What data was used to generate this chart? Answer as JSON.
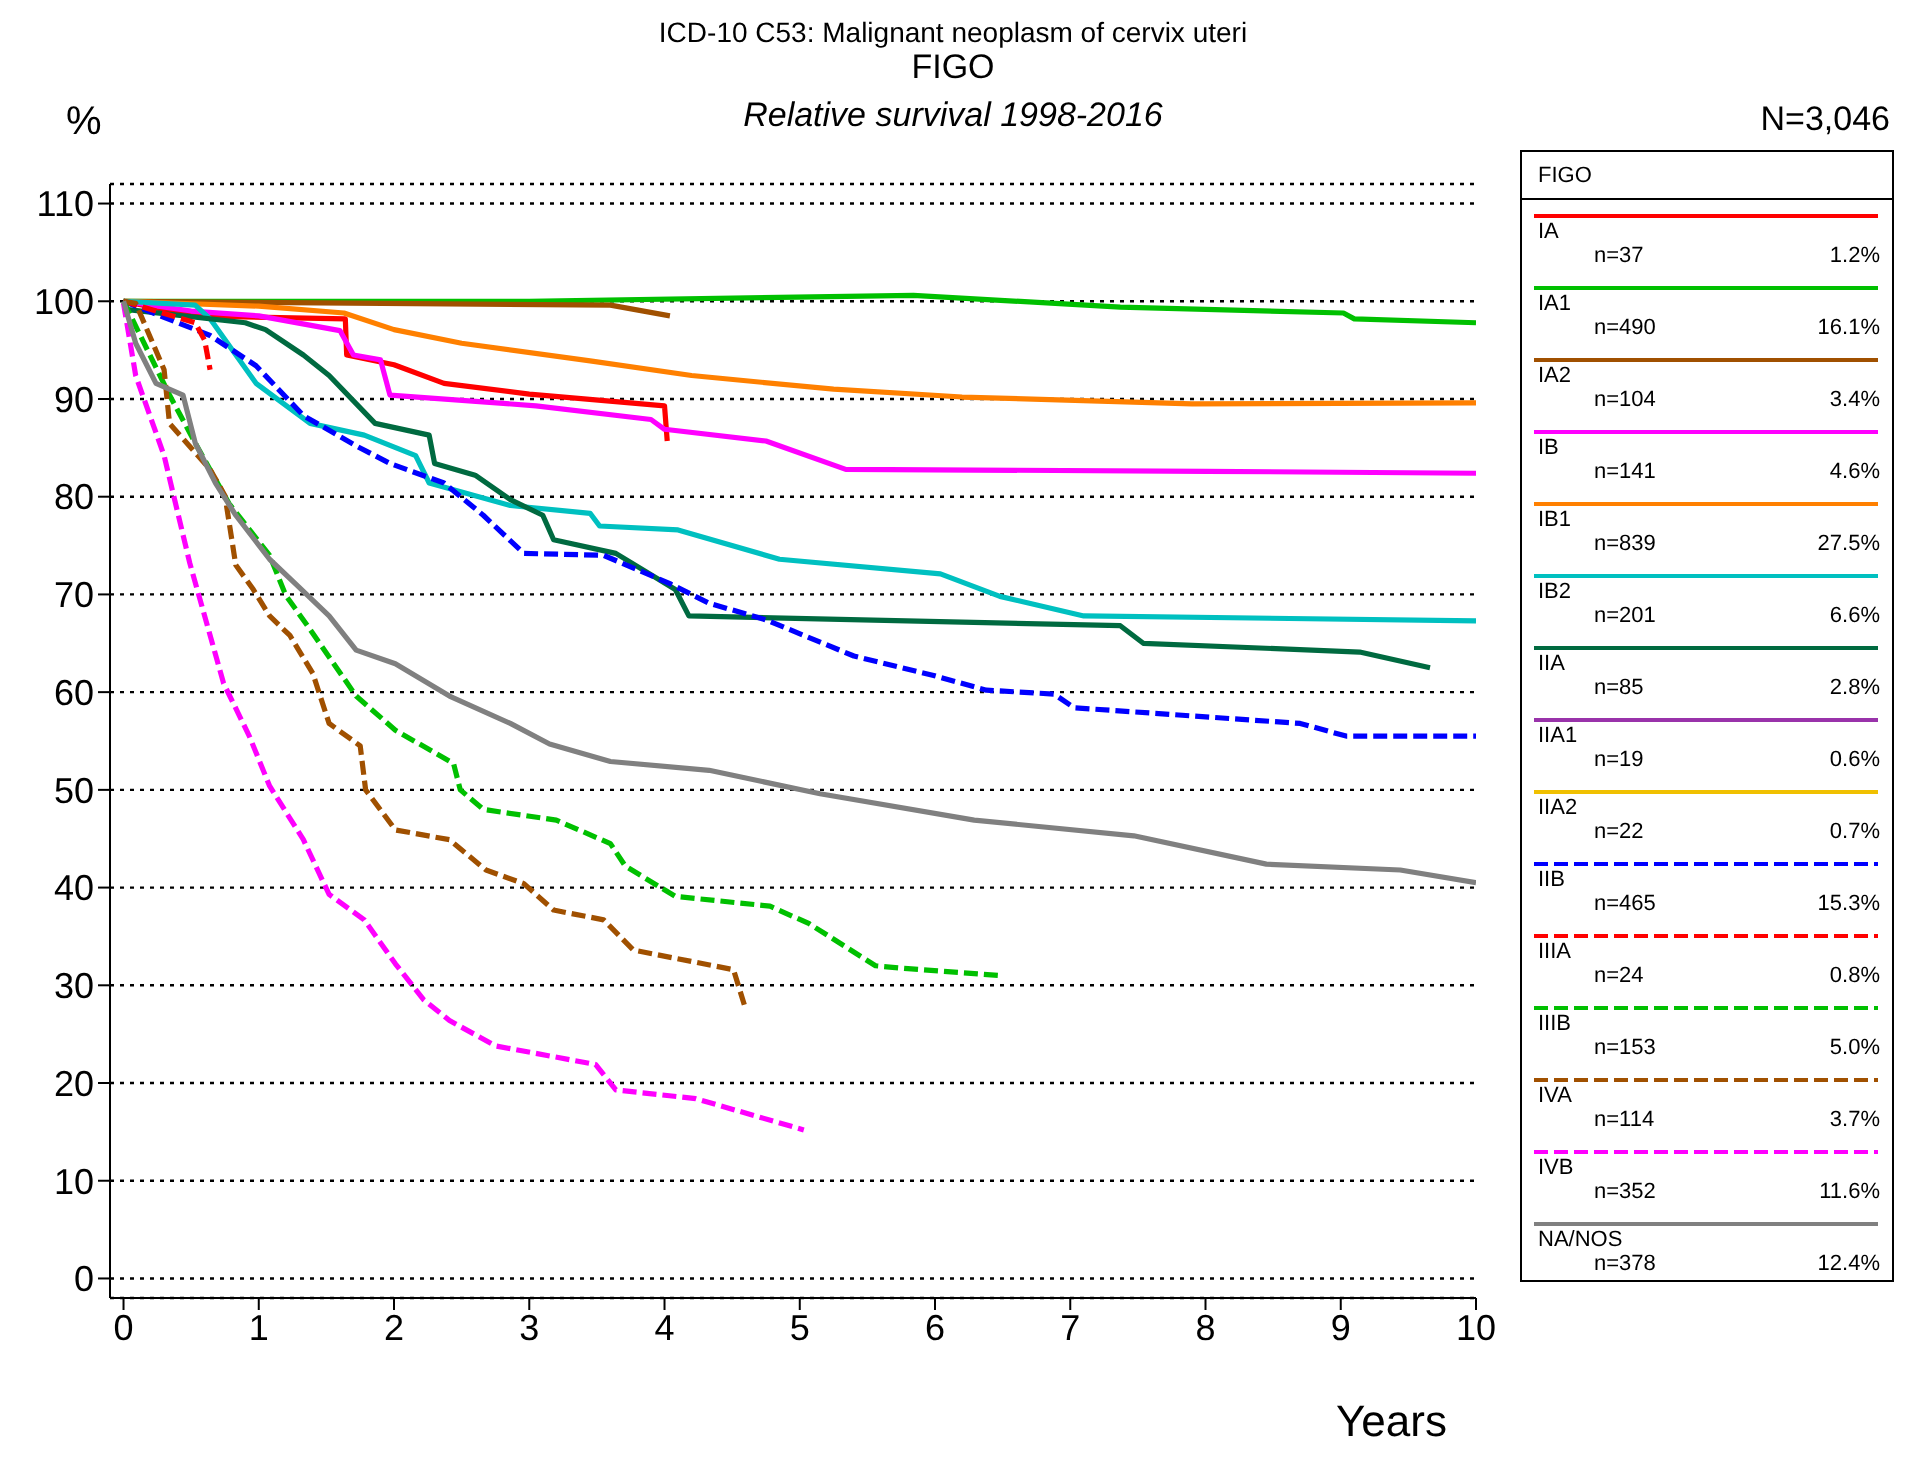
{
  "chart_data": {
    "type": "line",
    "title": "ICD-10 C53: Malignant neoplasm of cervix uteri",
    "subtitle": "FIGO",
    "xlabel": "Years",
    "ylabel": "%",
    "legend_title": "FIGO",
    "annotations": [
      "Relative survival 1998-2016",
      "N=3,046",
      "n=37",
      "1.2%",
      "n=490",
      "16.1%",
      "n=104",
      "3.4%",
      "n=141",
      "4.6%",
      "n=839",
      "27.5%",
      "n=201",
      "6.6%",
      "n=85",
      "2.8%",
      "n=19",
      "0.6%",
      "n=22",
      "0.7%",
      "n=465",
      "15.3%",
      "n=24",
      "0.8%",
      "n=153",
      "5.0%",
      "n=114",
      "3.7%",
      "n=352",
      "11.6%",
      "n=378",
      "12.4%"
    ],
    "xlim": [
      -0.1,
      10
    ],
    "xticks": [
      0,
      1,
      2,
      3,
      4,
      5,
      6,
      7,
      8,
      9,
      10
    ],
    "ylim": [
      -2,
      112
    ],
    "yticks": [
      0,
      10,
      20,
      30,
      40,
      50,
      60,
      70,
      80,
      90,
      100,
      110
    ],
    "grid": "y",
    "legend": "right",
    "marker": "none",
    "series": [
      {
        "name": "IA",
        "color": "#ff0000",
        "line_style": "solid",
        "x": [
          0,
          0.53,
          1.64,
          1.65,
          2.0,
          2.37,
          3.0,
          4.0,
          4.02
        ],
        "values": [
          100,
          98.5,
          98.2,
          94.5,
          93.5,
          91.6,
          90.5,
          89.3,
          85.7
        ]
      },
      {
        "name": "IA1",
        "color": "#00c000",
        "line_style": "solid",
        "x": [
          0,
          3,
          5.84,
          7.37,
          9.02,
          9.1,
          10
        ],
        "values": [
          100,
          100,
          100.6,
          99.4,
          98.8,
          98.2,
          97.8
        ]
      },
      {
        "name": "IA2",
        "color": "#a05000",
        "line_style": "solid",
        "x": [
          0,
          3.6,
          4.04
        ],
        "values": [
          100,
          99.6,
          98.5
        ]
      },
      {
        "name": "IB",
        "color": "#ff00ff",
        "line_style": "solid",
        "x": [
          0,
          0.5,
          1.0,
          1.6,
          1.7,
          1.9,
          1.97,
          3.05,
          3.9,
          4.0,
          4.75,
          5.34,
          8,
          10
        ],
        "values": [
          100,
          99,
          98.5,
          97,
          94.5,
          94,
          90.4,
          89.3,
          87.9,
          86.9,
          85.7,
          82.8,
          82.6,
          82.4
        ]
      },
      {
        "name": "IB1",
        "color": "#ff8000",
        "line_style": "solid",
        "x": [
          0,
          1.0,
          1.63,
          2.0,
          2.5,
          3.45,
          4.2,
          5.25,
          6.2,
          7.9,
          10
        ],
        "values": [
          100,
          99.5,
          98.8,
          97.1,
          95.7,
          93.9,
          92.4,
          91,
          90.2,
          89.5,
          89.6
        ]
      },
      {
        "name": "IB2",
        "color": "#00c0c0",
        "line_style": "solid",
        "x": [
          0,
          0.53,
          0.64,
          0.98,
          1.38,
          1.78,
          2.16,
          2.26,
          2.86,
          3.45,
          3.52,
          4.1,
          4.85,
          6.04,
          6.48,
          7.1,
          10
        ],
        "values": [
          100,
          99.6,
          98.2,
          91.6,
          87.5,
          86.3,
          84.2,
          81.4,
          79.1,
          78.3,
          77,
          76.6,
          73.6,
          72.1,
          69.8,
          67.8,
          67.3
        ]
      },
      {
        "name": "IIA",
        "color": "#006a40",
        "line_style": "solid",
        "x": [
          0,
          0.9,
          1.05,
          1.33,
          1.52,
          1.86,
          2.26,
          2.3,
          2.6,
          2.86,
          3.1,
          3.18,
          3.64,
          4.08,
          4.18,
          7.37,
          7.54,
          9.14,
          9.66
        ],
        "values": [
          99.2,
          97.8,
          97.1,
          94.5,
          92.4,
          87.5,
          86.3,
          83.4,
          82.2,
          79.7,
          78.1,
          75.6,
          74.2,
          70.5,
          67.8,
          66.8,
          65,
          64.1,
          62.5
        ]
      },
      {
        "name": "IIA1",
        "color": "#9933aa",
        "line_style": "solid"
      },
      {
        "name": "IIA2",
        "color": "#f0c000",
        "line_style": "solid"
      },
      {
        "name": "IIB",
        "color": "#0000ff",
        "line_style": "dashed",
        "x": [
          0,
          0.64,
          0.98,
          1.33,
          1.72,
          1.97,
          2.37,
          2.66,
          2.96,
          3.55,
          4.04,
          4.33,
          4.75,
          5.4,
          5.99,
          6.38,
          6.88,
          7.03,
          8.7,
          9.04,
          10
        ],
        "values": [
          100,
          96.5,
          93.4,
          88.3,
          85.2,
          83.4,
          81.4,
          78.1,
          74.2,
          74,
          71.1,
          69.1,
          67.4,
          63.7,
          61.7,
          60.2,
          59.8,
          58.4,
          56.8,
          55.5,
          55.5
        ]
      },
      {
        "name": "IIIA",
        "color": "#ff0000",
        "line_style": "dashed",
        "x": [
          0,
          0.53,
          0.6,
          0.64
        ],
        "values": [
          100,
          97.8,
          96,
          93
        ]
      },
      {
        "name": "IIIB",
        "color": "#00c000",
        "line_style": "dashed",
        "x": [
          0,
          0.34,
          0.53,
          0.78,
          1.08,
          1.2,
          1.38,
          1.72,
          2.01,
          2.44,
          2.49,
          2.66,
          3.2,
          3.6,
          3.71,
          4.08,
          4.78,
          5.07,
          5.56,
          5.8,
          6.48
        ],
        "values": [
          100,
          90.4,
          85.5,
          79.3,
          74,
          69.9,
          66.4,
          59.6,
          56.1,
          52.7,
          50,
          48,
          46.9,
          44.5,
          42.2,
          39.1,
          38.1,
          36.3,
          32,
          31.7,
          31
        ]
      },
      {
        "name": "IVA",
        "color": "#a05000",
        "line_style": "dashed",
        "x": [
          0,
          0.09,
          0.3,
          0.34,
          0.64,
          0.75,
          0.83,
          0.96,
          1.08,
          1.23,
          1.4,
          1.52,
          1.75,
          1.79,
          2.01,
          2.41,
          2.68,
          2.96,
          3.18,
          3.55,
          3.77,
          4.51,
          4.59
        ],
        "values": [
          100,
          99.8,
          93,
          87.5,
          82.8,
          80.1,
          73,
          70.5,
          67.8,
          65.8,
          61.9,
          56.8,
          54.5,
          50,
          45.9,
          44.9,
          41.8,
          40.4,
          37.7,
          36.7,
          33.6,
          31.6,
          28
        ]
      },
      {
        "name": "IVB",
        "color": "#ff00ff",
        "line_style": "dashed",
        "x": [
          0,
          0.09,
          0.3,
          0.49,
          0.74,
          0.93,
          1.08,
          1.33,
          1.52,
          1.78,
          2.01,
          2.22,
          2.41,
          2.75,
          3.49,
          3.64,
          4.23,
          5.03
        ],
        "values": [
          99.8,
          92.4,
          84.2,
          73.2,
          60.9,
          55.5,
          50.4,
          44.9,
          39.3,
          36.7,
          32.2,
          28.5,
          26.4,
          23.8,
          21.9,
          19.3,
          18.4,
          15.2
        ]
      },
      {
        "name": "NA/NOS",
        "color": "#808080",
        "line_style": "solid",
        "x": [
          0,
          0.09,
          0.24,
          0.44,
          0.53,
          0.68,
          0.83,
          1.08,
          1.27,
          1.52,
          1.72,
          2.01,
          2.41,
          2.86,
          3.15,
          3.6,
          4.33,
          5.15,
          6.29,
          7.47,
          8.45,
          9.44,
          10
        ],
        "values": [
          100,
          95.7,
          91.6,
          90.4,
          85.5,
          81.4,
          78.1,
          73.6,
          71.1,
          67.8,
          64.3,
          62.9,
          59.6,
          56.8,
          54.7,
          52.9,
          52,
          49.6,
          46.9,
          45.3,
          42.4,
          41.8,
          40.5
        ]
      }
    ]
  }
}
